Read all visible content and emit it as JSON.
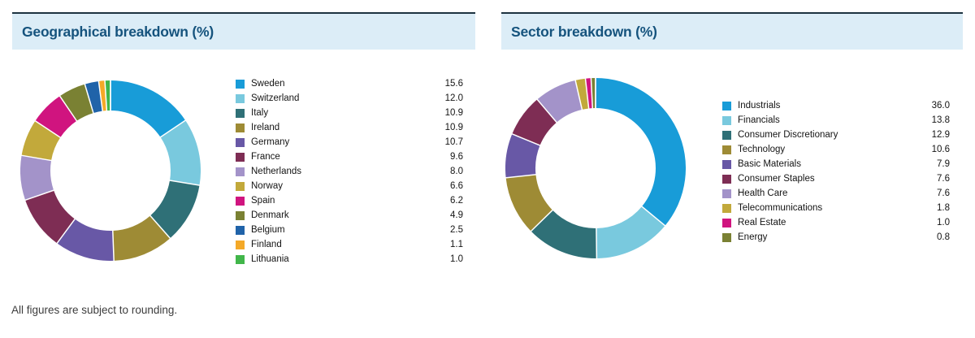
{
  "page": {
    "footnote": "All figures are subject to rounding.",
    "background_color": "#ffffff",
    "header_band_color": "#dcedf7",
    "header_text_color": "#15537d",
    "top_rule_color": "#1d3340"
  },
  "chart_data": [
    {
      "type": "pie",
      "subtype": "donut",
      "title": "Geographical breakdown (%)",
      "unit": "%",
      "legend_position": "right",
      "start_angle_deg": 0,
      "direction": "clockwise",
      "labels": [
        "Sweden",
        "Switzerland",
        "Italy",
        "Ireland",
        "Germany",
        "France",
        "Netherlands",
        "Norway",
        "Spain",
        "Denmark",
        "Belgium",
        "Finland",
        "Lithuania"
      ],
      "values": [
        15.6,
        12.0,
        10.9,
        10.9,
        10.7,
        9.6,
        8.0,
        6.6,
        6.2,
        4.9,
        2.5,
        1.1,
        1.0
      ],
      "colors": [
        "#189cd8",
        "#79c9de",
        "#2f7077",
        "#9e8b35",
        "#6858a6",
        "#7e2d54",
        "#a393c9",
        "#c2a93b",
        "#d0147f",
        "#7a8133",
        "#2063a9",
        "#f4a928",
        "#41b64a"
      ]
    },
    {
      "type": "pie",
      "subtype": "donut",
      "title": "Sector breakdown (%)",
      "unit": "%",
      "legend_position": "right",
      "start_angle_deg": 0,
      "direction": "clockwise",
      "labels": [
        "Industrials",
        "Financials",
        "Consumer Discretionary",
        "Technology",
        "Basic Materials",
        "Consumer Staples",
        "Health Care",
        "Telecommunications",
        "Real Estate",
        "Energy"
      ],
      "values": [
        36.0,
        13.8,
        12.9,
        10.6,
        7.9,
        7.6,
        7.6,
        1.8,
        1.0,
        0.8
      ],
      "colors": [
        "#189cd8",
        "#79c9de",
        "#2f7077",
        "#9e8b35",
        "#6858a6",
        "#7e2d54",
        "#a393c9",
        "#c2a93b",
        "#d0147f",
        "#7a8133"
      ]
    }
  ]
}
